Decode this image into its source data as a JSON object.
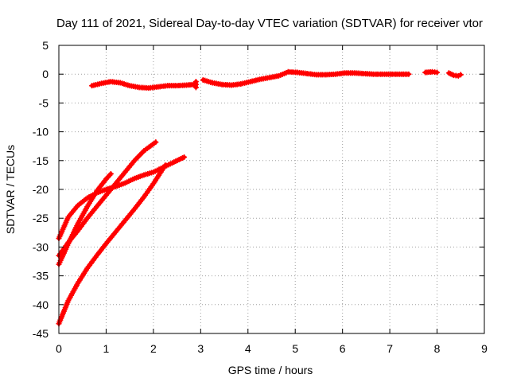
{
  "chart_data": {
    "type": "scatter",
    "title": "Day 111 of 2021, Sidereal Day-to-day VTEC variation (SDTVAR) for receiver vtor",
    "xlabel": "GPS time / hours",
    "ylabel": "SDTVAR / TECUs",
    "xlim": [
      0,
      9
    ],
    "ylim": [
      -45,
      5
    ],
    "xticks": [
      0,
      1,
      2,
      3,
      4,
      5,
      6,
      7,
      8,
      9
    ],
    "yticks": [
      5,
      0,
      -5,
      -10,
      -15,
      -20,
      -25,
      -30,
      -35,
      -40,
      -45
    ],
    "grid": true,
    "marker": "plus",
    "color": "#ff0000",
    "series": [
      {
        "x": [
          0.7,
          0.9,
          1.1,
          1.3,
          1.5,
          1.7,
          1.9,
          2.1,
          2.3,
          2.5,
          2.7,
          2.85
        ],
        "y": [
          -2.0,
          -1.6,
          -1.3,
          -1.5,
          -2.0,
          -2.3,
          -2.4,
          -2.2,
          -2.0,
          -2.0,
          -1.9,
          -1.8
        ]
      },
      {
        "x": [
          3.05,
          3.25,
          3.45,
          3.65,
          3.85,
          4.05,
          4.25,
          4.45,
          4.65,
          4.85,
          5.05,
          5.25,
          5.45,
          5.65,
          5.85,
          6.05,
          6.25,
          6.45,
          6.65,
          6.85,
          7.05,
          7.25,
          7.4
        ],
        "y": [
          -1.0,
          -1.5,
          -1.8,
          -1.9,
          -1.7,
          -1.3,
          -0.9,
          -0.6,
          -0.3,
          0.4,
          0.3,
          0.1,
          -0.1,
          -0.1,
          0.0,
          0.2,
          0.2,
          0.1,
          0.0,
          0.0,
          0.0,
          0.0,
          0.0
        ]
      },
      {
        "x": [
          7.75,
          7.9,
          8.0
        ],
        "y": [
          0.3,
          0.4,
          0.3
        ]
      },
      {
        "x": [
          8.25,
          8.35,
          8.45,
          8.5
        ],
        "y": [
          0.2,
          -0.2,
          -0.3,
          -0.1
        ]
      },
      {
        "x": [
          0.0,
          0.2,
          0.4,
          0.6,
          0.8,
          1.0,
          1.1
        ],
        "y": [
          -33.0,
          -29.4,
          -26.0,
          -23.0,
          -20.3,
          -18.2,
          -17.3
        ]
      },
      {
        "x": [
          0.0,
          0.2,
          0.4,
          0.6,
          0.8,
          1.0,
          1.2,
          1.4,
          1.6,
          1.8,
          2.05
        ],
        "y": [
          -31.5,
          -29.2,
          -27.2,
          -25.0,
          -23.0,
          -21.0,
          -19.0,
          -17.0,
          -15.0,
          -13.3,
          -11.8
        ]
      },
      {
        "x": [
          0.0,
          0.2,
          0.4,
          0.6,
          0.8,
          1.0,
          1.2,
          1.4,
          1.6,
          1.8,
          2.0,
          2.2,
          2.4,
          2.65
        ],
        "y": [
          -28.5,
          -24.8,
          -22.8,
          -21.5,
          -20.6,
          -20.0,
          -19.5,
          -18.9,
          -18.1,
          -17.5,
          -17.0,
          -16.2,
          -15.4,
          -14.4
        ]
      },
      {
        "x": [
          0.0,
          0.2,
          0.4,
          0.6,
          0.8,
          1.0,
          1.2,
          1.4,
          1.6,
          1.8,
          2.0,
          2.25
        ],
        "y": [
          -43.3,
          -39.3,
          -36.3,
          -33.7,
          -31.5,
          -29.4,
          -27.4,
          -25.4,
          -23.4,
          -21.3,
          -19.0,
          -15.8
        ]
      },
      {
        "x": [
          2.9,
          2.9,
          2.9
        ],
        "y": [
          -1.3,
          -1.8,
          -2.3
        ]
      }
    ]
  }
}
